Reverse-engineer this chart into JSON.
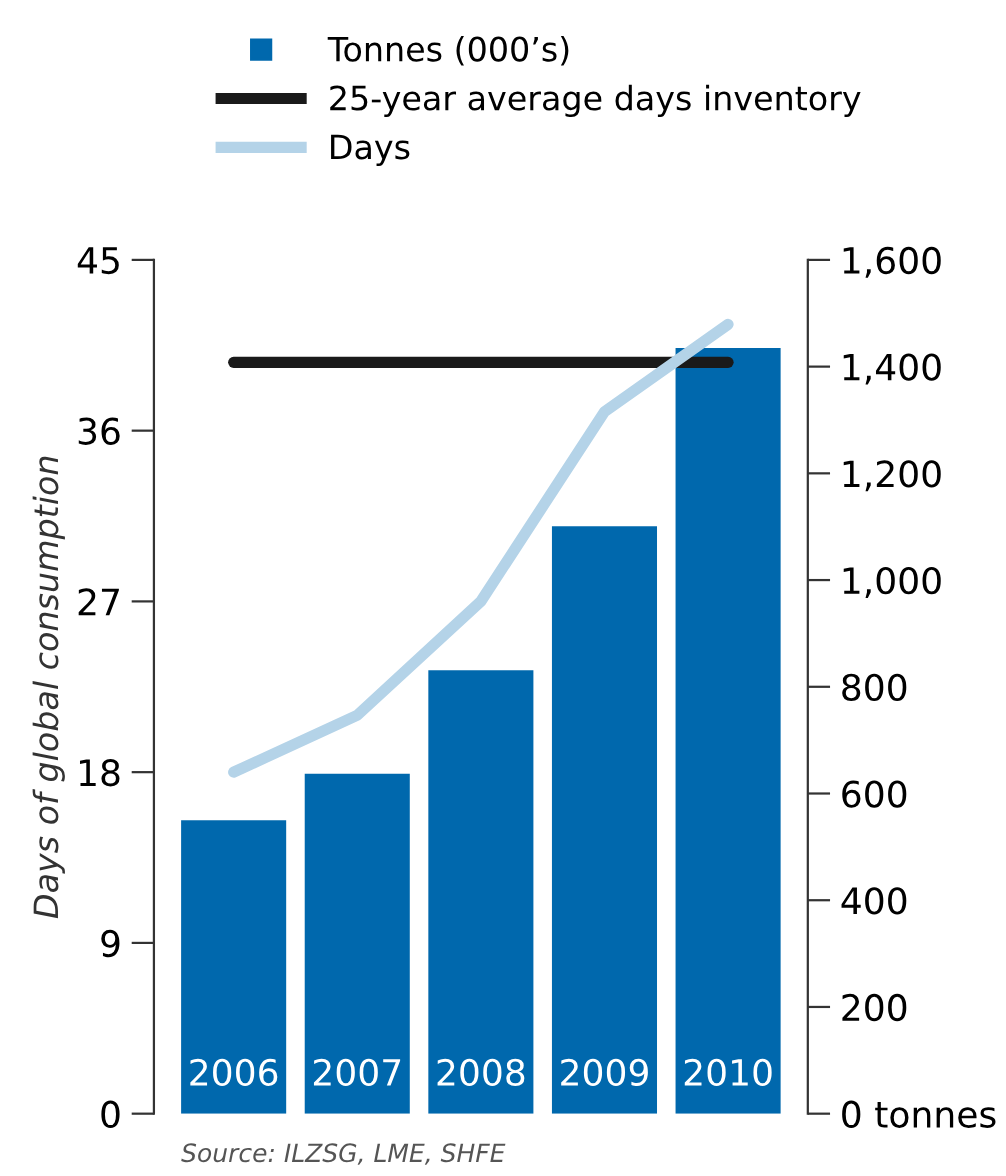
{
  "chart_data": {
    "type": "bar",
    "categories": [
      "2006",
      "2007",
      "2008",
      "2009",
      "2010"
    ],
    "series": [
      {
        "name": "Tonnes (000’s)",
        "axis": "y2",
        "color": "#0068ad",
        "values": [
          550,
          637,
          831,
          1101,
          1435
        ]
      },
      {
        "name": "25-year average days inventory",
        "type": "line",
        "color": "#1a1a1a",
        "values": [
          39.6,
          39.6,
          39.6,
          39.6,
          39.6
        ]
      },
      {
        "name": "Days",
        "type": "line",
        "color": "#b4d3e8",
        "values": [
          18.0,
          21.0,
          27.0,
          37.0,
          41.6
        ]
      }
    ],
    "ylabel": "Days of global consumption",
    "ylim": [
      0,
      45
    ],
    "yticks": [
      0,
      9,
      18,
      27,
      36,
      45
    ],
    "y2lim": [
      0,
      1600
    ],
    "y2ticks": [
      {
        "value": 0,
        "label": "0 tonnes"
      },
      {
        "value": 200,
        "label": "200"
      },
      {
        "value": 400,
        "label": "400"
      },
      {
        "value": 600,
        "label": "600"
      },
      {
        "value": 800,
        "label": "800"
      },
      {
        "value": 1000,
        "label": "1,000"
      },
      {
        "value": 1200,
        "label": "1,200"
      },
      {
        "value": 1400,
        "label": "1,400"
      },
      {
        "value": 1600,
        "label": "1,600"
      }
    ],
    "legend": "top",
    "grid": false,
    "marker": "none",
    "line_style": "solid",
    "annotations": [
      "Source: ILZSG, LME, SHFE"
    ]
  }
}
